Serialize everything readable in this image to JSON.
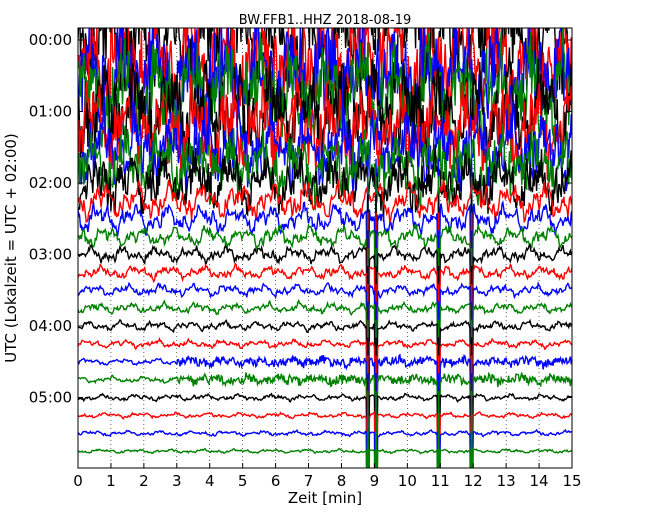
{
  "chart_data": {
    "type": "line",
    "title": "BW.FFB1..HHZ 2018-08-19",
    "xlabel": "Zeit  [min]",
    "ylabel": "UTC (Lokalzeit = UTC + 02:00)",
    "xlim": [
      0,
      15
    ],
    "x_ticks": [
      "0",
      "1",
      "2",
      "3",
      "4",
      "5",
      "6",
      "7",
      "8",
      "9",
      "10",
      "11",
      "12",
      "13",
      "14",
      "15"
    ],
    "y_ticks": [
      "00:00",
      "01:00",
      "02:00",
      "03:00",
      "04:00",
      "05:00"
    ],
    "grid": "vertical-dotted",
    "trace_colors": [
      "#000000",
      "#ff0000",
      "#0000ff",
      "#008000"
    ],
    "traces": [
      {
        "hour_offset": 0.0,
        "amplitude": 0.75
      },
      {
        "hour_offset": 0.25,
        "amplitude": 0.7
      },
      {
        "hour_offset": 0.5,
        "amplitude": 0.7
      },
      {
        "hour_offset": 0.75,
        "amplitude": 0.65
      },
      {
        "hour_offset": 1.0,
        "amplitude": 0.6
      },
      {
        "hour_offset": 1.25,
        "amplitude": 0.55
      },
      {
        "hour_offset": 1.5,
        "amplitude": 0.48
      },
      {
        "hour_offset": 1.75,
        "amplitude": 0.42
      },
      {
        "hour_offset": 2.0,
        "amplitude": 0.35
      },
      {
        "hour_offset": 2.25,
        "amplitude": 0.28
      },
      {
        "hour_offset": 2.5,
        "amplitude": 0.22
      },
      {
        "hour_offset": 2.75,
        "amplitude": 0.16
      },
      {
        "hour_offset": 3.0,
        "amplitude": 0.12
      },
      {
        "hour_offset": 3.25,
        "amplitude": 0.1
      },
      {
        "hour_offset": 3.5,
        "amplitude": 0.09
      },
      {
        "hour_offset": 3.75,
        "amplitude": 0.08
      },
      {
        "hour_offset": 4.0,
        "amplitude": 0.07
      },
      {
        "hour_offset": 4.25,
        "amplitude": 0.06
      },
      {
        "hour_offset": 4.5,
        "amplitude": 0.05
      },
      {
        "hour_offset": 4.75,
        "amplitude": 0.05
      },
      {
        "hour_offset": 5.0,
        "amplitude": 0.05
      },
      {
        "hour_offset": 5.25,
        "amplitude": 0.04
      },
      {
        "hour_offset": 5.5,
        "amplitude": 0.04
      },
      {
        "hour_offset": 5.75,
        "amplitude": 0.03
      }
    ]
  }
}
